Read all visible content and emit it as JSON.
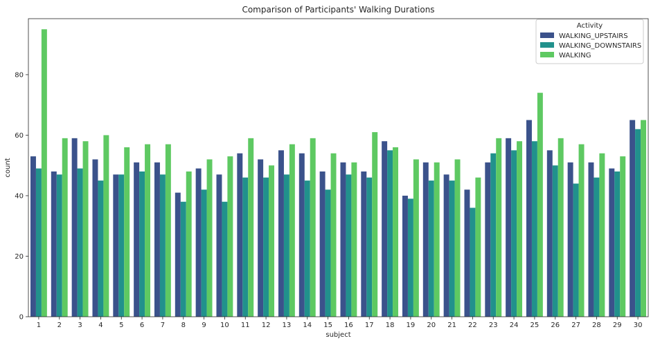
{
  "chart_data": {
    "type": "bar",
    "title": "Comparison of Participants' Walking Durations",
    "xlabel": "subject",
    "ylabel": "count",
    "ylim": [
      0,
      98.5
    ],
    "yticks": [
      0,
      20,
      40,
      60,
      80
    ],
    "grid": false,
    "legend": {
      "title": "Activity",
      "placement": "top-right"
    },
    "categories": [
      "1",
      "2",
      "3",
      "4",
      "5",
      "6",
      "7",
      "8",
      "9",
      "10",
      "11",
      "12",
      "13",
      "14",
      "15",
      "16",
      "17",
      "18",
      "19",
      "20",
      "21",
      "22",
      "23",
      "24",
      "25",
      "26",
      "27",
      "28",
      "29",
      "30"
    ],
    "series": [
      {
        "name": "WALKING_UPSTAIRS",
        "color": "#3b528b",
        "values": [
          53,
          48,
          59,
          52,
          47,
          51,
          51,
          41,
          49,
          47,
          54,
          52,
          55,
          54,
          48,
          51,
          48,
          58,
          40,
          51,
          47,
          42,
          51,
          59,
          65,
          55,
          51,
          51,
          49,
          65
        ]
      },
      {
        "name": "WALKING_DOWNSTAIRS",
        "color": "#21918c",
        "values": [
          49,
          47,
          49,
          45,
          47,
          48,
          47,
          38,
          42,
          38,
          46,
          46,
          47,
          45,
          42,
          47,
          46,
          55,
          39,
          45,
          45,
          36,
          54,
          55,
          58,
          50,
          44,
          46,
          48,
          62
        ]
      },
      {
        "name": "WALKING",
        "color": "#5ec962",
        "values": [
          95,
          59,
          58,
          60,
          56,
          57,
          57,
          48,
          52,
          53,
          59,
          50,
          57,
          59,
          54,
          51,
          61,
          56,
          52,
          51,
          52,
          46,
          59,
          58,
          74,
          59,
          57,
          54,
          53,
          65
        ]
      }
    ]
  }
}
